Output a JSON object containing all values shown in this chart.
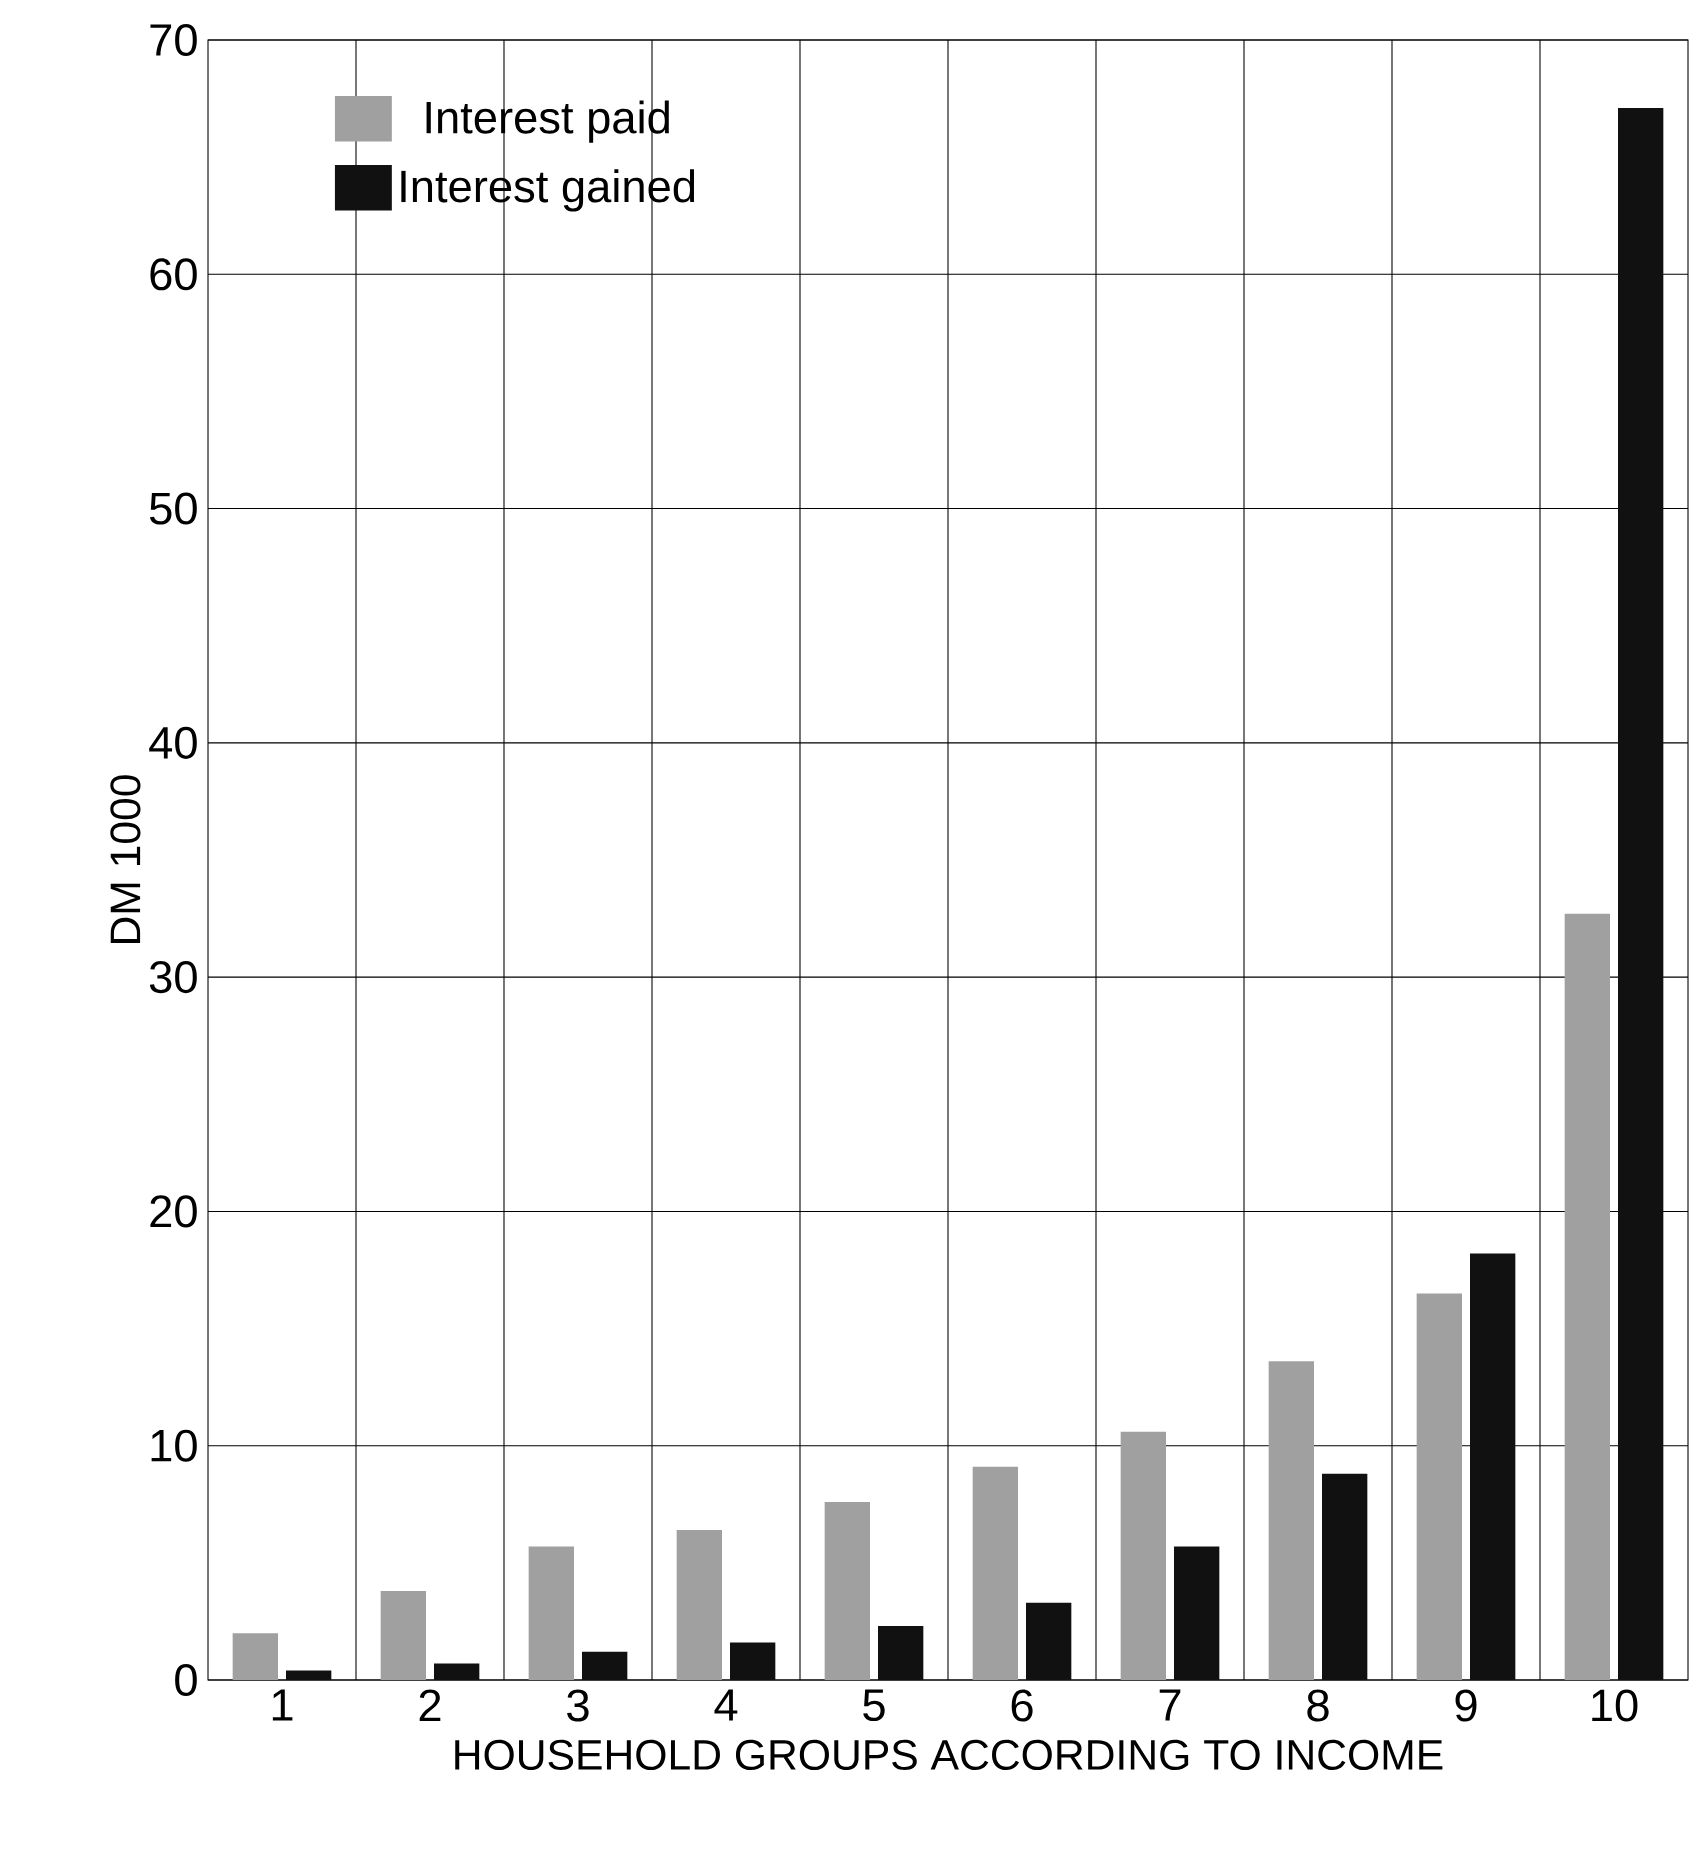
{
  "chart_data": {
    "type": "bar",
    "xlabel": "HOUSEHOLD GROUPS ACCORDING TO INCOME",
    "ylabel": "DM 1000",
    "categories": [
      "1",
      "2",
      "3",
      "4",
      "5",
      "6",
      "7",
      "8",
      "9",
      "10"
    ],
    "series": [
      {
        "name": "Interest paid",
        "color": "#a0a0a0",
        "values": [
          2.0,
          3.8,
          5.7,
          6.4,
          7.6,
          9.1,
          10.6,
          13.6,
          16.5,
          32.7
        ]
      },
      {
        "name": "Interest gained",
        "color": "#111111",
        "values": [
          0.4,
          0.7,
          1.2,
          1.6,
          2.3,
          3.3,
          5.7,
          8.8,
          18.2,
          67.1
        ]
      }
    ],
    "ylim": [
      0,
      70
    ],
    "yticks": [
      0,
      10,
      20,
      30,
      40,
      50,
      60,
      70
    ],
    "grid": true,
    "legend": "top left"
  }
}
